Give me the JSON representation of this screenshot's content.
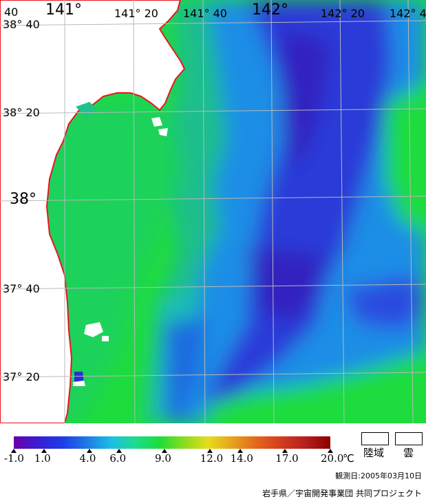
{
  "map": {
    "lon_labels": [
      {
        "text": "141°",
        "lon": 141.0,
        "size": "big"
      },
      {
        "text": "141° 20",
        "lon": 141.333,
        "size": "small"
      },
      {
        "text": "141° 40",
        "lon": 141.667,
        "size": "small"
      },
      {
        "text": "142°",
        "lon": 142.0,
        "size": "big"
      },
      {
        "text": "142° 20",
        "lon": 142.333,
        "size": "small"
      },
      {
        "text": "142° 4",
        "lon": 142.667,
        "size": "small"
      }
    ],
    "lat_labels": [
      {
        "text": "38° 40",
        "lat": 38.667,
        "size": "small",
        "prefix": "40"
      },
      {
        "text": "38° 20",
        "lat": 38.333,
        "size": "small"
      },
      {
        "text": "38°",
        "lat": 38.0,
        "size": "big"
      },
      {
        "text": "37° 40",
        "lat": 37.667,
        "size": "small"
      },
      {
        "text": "37° 20",
        "lat": 37.333,
        "size": "small"
      }
    ],
    "colors": {
      "coastline": "#e8141e",
      "land": "#ffffff",
      "grid": "#b9b9b9",
      "cold": "#2a2fd0",
      "mid": "#1e8ee6",
      "warm": "#1edc3c",
      "teal": "#1ebe8c"
    }
  },
  "colorbar": {
    "ticks": [
      "-1.0",
      "1.0",
      "4.0",
      "6.0",
      "9.0",
      "12.0",
      "14.0",
      "17.0",
      "20.0"
    ],
    "tick_values": [
      -1.0,
      1.0,
      4.0,
      6.0,
      9.0,
      12.0,
      14.0,
      17.0,
      20.0
    ],
    "min": -1.0,
    "max": 20.0,
    "unit": "℃",
    "gradient": [
      "#6a00a8",
      "#3a1ed2",
      "#1e3ce6",
      "#1e7ae6",
      "#1ebee6",
      "#1edc8c",
      "#1edc3c",
      "#8cdc1e",
      "#e6dc1e",
      "#e6a01e",
      "#e6641e",
      "#d23c1e",
      "#b41e1e",
      "#8c0000"
    ]
  },
  "legend": {
    "land_label": "陸域",
    "cloud_label": "雲"
  },
  "footer": {
    "observation_date": "観測日:2005年03月10日",
    "credit": "岩手県／宇宙開発事業団 共同プロジェクト"
  }
}
